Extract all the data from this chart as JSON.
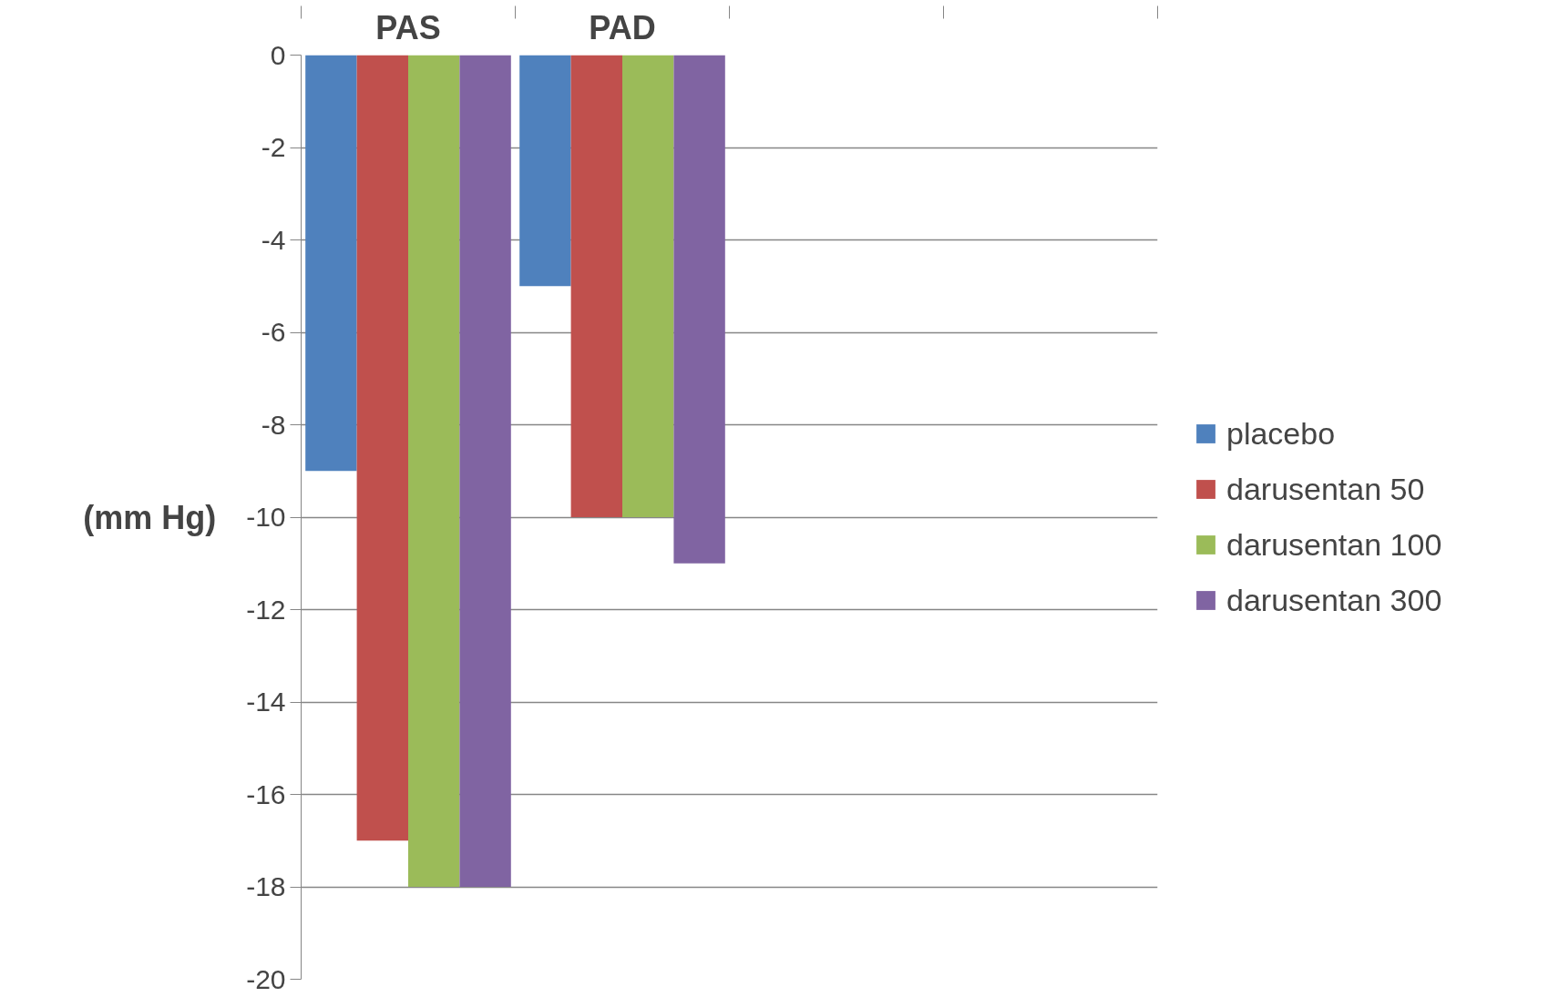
{
  "chart_data": {
    "type": "bar",
    "ylabel": "(mm Hg)",
    "categories": [
      "PAS",
      "PAD",
      null,
      null
    ],
    "series": [
      {
        "name": "placebo",
        "color": "#4f81bd",
        "values": [
          -9,
          -5,
          null,
          null
        ]
      },
      {
        "name": "darusentan 50",
        "color": "#c0504d",
        "values": [
          -17,
          -10,
          null,
          null
        ]
      },
      {
        "name": "darusentan 100",
        "color": "#9bbb59",
        "values": [
          -18,
          -10,
          null,
          null
        ]
      },
      {
        "name": "darusentan 300",
        "color": "#8064a2",
        "values": [
          -18,
          -11,
          null,
          null
        ]
      }
    ],
    "ylim": [
      -20,
      0
    ],
    "yticks": [
      0,
      -2,
      -4,
      -6,
      -8,
      -10,
      -12,
      -14,
      -16,
      -18,
      -20
    ],
    "grid": "y",
    "legend": "right"
  }
}
